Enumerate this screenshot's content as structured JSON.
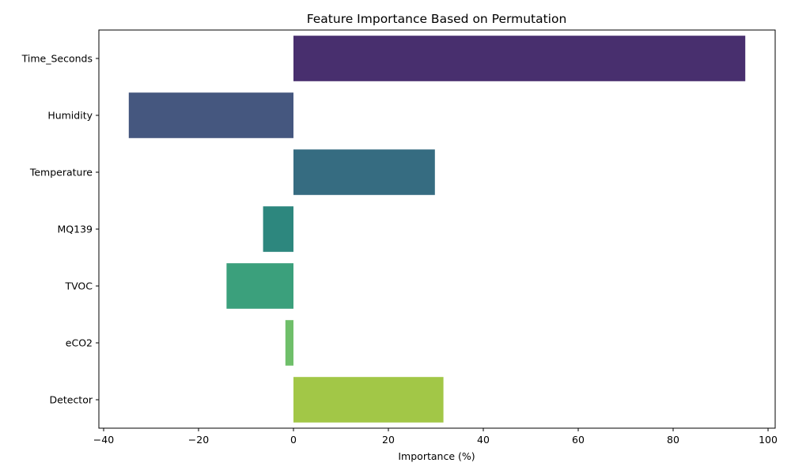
{
  "chart_data": {
    "type": "bar",
    "orientation": "horizontal",
    "title": "Feature Importance Based on Permutation",
    "xlabel": "Importance (%)",
    "ylabel": "",
    "xlim": [
      -41,
      101.5
    ],
    "xticks": [
      -40,
      -20,
      0,
      20,
      40,
      60,
      80,
      100
    ],
    "xtick_labels": [
      "−40",
      "−20",
      "0",
      "20",
      "40",
      "60",
      "80",
      "100"
    ],
    "grid": false,
    "categories": [
      "Time_Seconds",
      "Humidity",
      "Temperature",
      "MQ139",
      "TVOC",
      "eCO2",
      "Detector"
    ],
    "values": [
      95.2,
      -34.7,
      29.8,
      -6.4,
      -14.1,
      -1.7,
      31.6
    ],
    "colors": [
      "#482f6e",
      "#45577f",
      "#366c81",
      "#2d877e",
      "#3ba07c",
      "#6fbf6a",
      "#a2c747"
    ]
  }
}
